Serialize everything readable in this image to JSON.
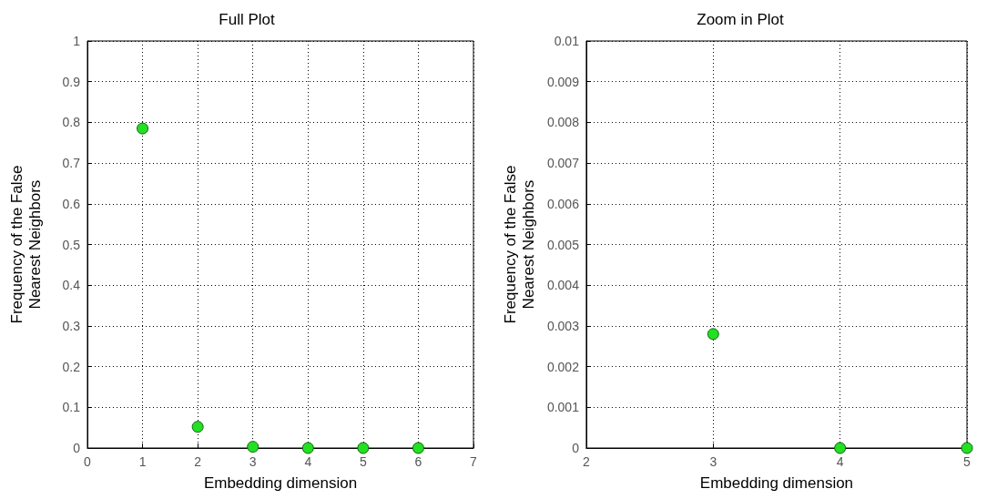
{
  "chart_data": [
    {
      "type": "scatter",
      "title": "Full Plot",
      "xlabel": "Embedding dimension",
      "ylabel": "Frequency of the False\nNearest Neighbors",
      "x": [
        1,
        2,
        3,
        4,
        5,
        6
      ],
      "series": [
        {
          "color": "#22e022",
          "values": [
            0.785,
            0.052,
            0.003,
            0,
            0,
            0
          ]
        }
      ],
      "xlim": [
        0,
        7
      ],
      "xticks": [
        0,
        1,
        2,
        3,
        4,
        5,
        6,
        7
      ],
      "ylim": [
        0,
        1
      ],
      "yticks": [
        0,
        0.1,
        0.2,
        0.3,
        0.4,
        0.5,
        0.6,
        0.7,
        0.8,
        0.9,
        1
      ],
      "grid": true,
      "marker": "circle"
    },
    {
      "type": "scatter",
      "title": "Zoom in Plot",
      "xlabel": "Embedding dimension",
      "ylabel": "Frequency of the False\nNearest Neighbors",
      "x": [
        3,
        4,
        5
      ],
      "series": [
        {
          "color": "#22e022",
          "values": [
            0.0028,
            0,
            0
          ]
        }
      ],
      "xlim": [
        2,
        5
      ],
      "xticks": [
        2,
        3,
        4,
        5
      ],
      "ylim": [
        0,
        0.01
      ],
      "yticks": [
        0,
        0.001,
        0.002,
        0.003,
        0.004,
        0.005,
        0.006,
        0.007,
        0.008,
        0.009,
        0.01
      ],
      "grid": true,
      "marker": "circle"
    }
  ]
}
